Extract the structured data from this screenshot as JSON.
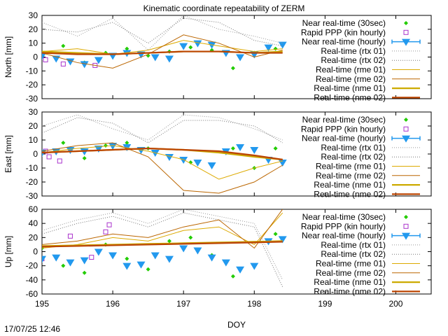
{
  "page": {
    "title": "Kinematic coordinate repeatability of ZERM",
    "timestamp": "17/07/25 12:46"
  },
  "legend_entries": [
    {
      "label": "Near real-time (30sec)",
      "color": "#22cc00",
      "style": "points"
    },
    {
      "label": "Rapid PPP (kin hourly)",
      "color": "#aa33cc",
      "style": "square"
    },
    {
      "label": "Near real-time (hourly)",
      "color": "#2299ee",
      "style": "triangle-errorbar"
    },
    {
      "label": "Real-time (rtx 01)",
      "color": "#999999",
      "style": "dotted"
    },
    {
      "label": "Real-time (rtx 02)",
      "color": "#777777",
      "style": "dotted"
    },
    {
      "label": "Real-time (rme 01)",
      "color": "#ddaa00",
      "style": "line"
    },
    {
      "label": "Real-time (rme 02)",
      "color": "#bb6600",
      "style": "line"
    },
    {
      "label": "Real-time (nme 01)",
      "color": "#ccaa00",
      "style": "thick-line"
    },
    {
      "label": "Real-time (nme 02)",
      "color": "#bb4400",
      "style": "thick-line"
    }
  ],
  "chart_data": [
    {
      "type": "scatter",
      "panel": "north",
      "title": "Kinematic coordinate repeatability of ZERM",
      "ylabel": "North [mm]",
      "xlabel": "",
      "xlim": [
        195,
        200.5
      ],
      "ylim": [
        -30,
        30
      ],
      "yticks": [
        "30",
        "20",
        "10",
        "0",
        "-10",
        "-20",
        "-30"
      ],
      "xticks": [],
      "grid": false,
      "legend_placement": "right",
      "series": [
        {
          "name": "Near real-time (30sec)",
          "x": [
            195.0,
            195.3,
            195.6,
            195.9,
            196.2,
            196.5,
            196.8,
            197.1,
            197.4,
            197.7,
            198.0,
            198.3
          ],
          "y": [
            2,
            8,
            -4,
            3,
            6,
            1,
            4,
            7,
            5,
            -8,
            3,
            6
          ]
        },
        {
          "name": "Rapid PPP (kin hourly)",
          "x": [
            195.05,
            195.3,
            195.75
          ],
          "y": [
            -2,
            -5,
            -6
          ]
        },
        {
          "name": "Near real-time (hourly)",
          "x": [
            195.0,
            195.2,
            195.4,
            195.6,
            195.8,
            196.0,
            196.2,
            196.4,
            196.6,
            196.8,
            197.0,
            197.2,
            197.4,
            197.6,
            197.8,
            198.0,
            198.2,
            198.4
          ],
          "y": [
            1,
            -1,
            -3,
            -5,
            -2,
            1,
            3,
            2,
            0,
            -1,
            8,
            10,
            9,
            3,
            0,
            2,
            7,
            9
          ]
        },
        {
          "name": "Real-time (rtx 01)",
          "x": [
            195.0,
            195.5,
            196.0,
            196.5,
            197.0,
            197.5,
            198.0,
            198.4
          ],
          "y": [
            25,
            15,
            28,
            5,
            30,
            20,
            15,
            10
          ]
        },
        {
          "name": "Real-time (rtx 02)",
          "x": [
            195.0,
            195.5,
            196.0,
            196.5,
            197.0,
            197.5,
            198.0,
            198.4
          ],
          "y": [
            20,
            18,
            25,
            10,
            28,
            25,
            12,
            8
          ]
        },
        {
          "name": "Real-time (rme 01)",
          "x": [
            195.0,
            195.5,
            196.0,
            196.5,
            197.0,
            197.5,
            198.0,
            198.4
          ],
          "y": [
            4,
            6,
            2,
            5,
            12,
            8,
            4,
            6
          ]
        },
        {
          "name": "Real-time (rme 02)",
          "x": [
            195.0,
            195.5,
            196.0,
            196.5,
            197.0,
            197.5,
            198.0,
            198.4
          ],
          "y": [
            3,
            -4,
            -8,
            2,
            16,
            10,
            0,
            5
          ]
        },
        {
          "name": "Real-time (nme 01)",
          "x": [
            195.0,
            195.5,
            196.0,
            196.5,
            197.0,
            197.5,
            198.0,
            198.4
          ],
          "y": [
            4,
            3,
            2,
            3,
            4,
            4,
            3,
            4
          ]
        },
        {
          "name": "Real-time (nme 02)",
          "x": [
            195.0,
            195.5,
            196.0,
            196.5,
            197.0,
            197.5,
            198.0,
            198.4
          ],
          "y": [
            3,
            2,
            2,
            3,
            4,
            4,
            3,
            3
          ]
        }
      ]
    },
    {
      "type": "scatter",
      "panel": "east",
      "title": "",
      "ylabel": "East [mm]",
      "xlabel": "",
      "xlim": [
        195,
        200.5
      ],
      "ylim": [
        -30,
        30
      ],
      "yticks": [
        "30",
        "20",
        "10",
        "0",
        "-10",
        "-20",
        "-30"
      ],
      "xticks": [],
      "grid": false,
      "legend_placement": "right",
      "series": [
        {
          "name": "Near real-time (30sec)",
          "x": [
            195.0,
            195.3,
            195.6,
            195.9,
            196.2,
            196.5,
            196.8,
            197.1,
            197.4,
            197.7,
            198.0,
            198.3
          ],
          "y": [
            2,
            8,
            -3,
            6,
            8,
            4,
            -2,
            -6,
            -8,
            4,
            -10,
            4
          ]
        },
        {
          "name": "Rapid PPP (kin hourly)",
          "x": [
            195.05,
            195.1,
            195.25
          ],
          "y": [
            2,
            -2,
            -5
          ]
        },
        {
          "name": "Near real-time (hourly)",
          "x": [
            195.0,
            195.2,
            195.4,
            195.6,
            195.8,
            196.0,
            196.2,
            196.4,
            196.6,
            196.8,
            197.0,
            197.2,
            197.4,
            197.6,
            197.8,
            198.0,
            198.2,
            198.4
          ],
          "y": [
            1,
            2,
            3,
            2,
            4,
            6,
            5,
            3,
            1,
            -2,
            -4,
            -6,
            -8,
            2,
            5,
            3,
            -4,
            -6
          ]
        },
        {
          "name": "Real-time (rtx 01)",
          "x": [
            195.0,
            195.5,
            196.0,
            196.5,
            197.0,
            197.5,
            198.0,
            198.4
          ],
          "y": [
            20,
            28,
            18,
            10,
            28,
            26,
            18,
            10
          ]
        },
        {
          "name": "Real-time (rtx 02)",
          "x": [
            195.0,
            195.5,
            196.0,
            196.5,
            197.0,
            197.5,
            198.0,
            198.4
          ],
          "y": [
            15,
            26,
            22,
            8,
            24,
            24,
            20,
            8
          ]
        },
        {
          "name": "Real-time (rme 01)",
          "x": [
            195.0,
            195.5,
            196.0,
            196.5,
            197.0,
            197.5,
            198.0,
            198.4
          ],
          "y": [
            1,
            4,
            6,
            2,
            -4,
            -18,
            -10,
            -5
          ]
        },
        {
          "name": "Real-time (rme 02)",
          "x": [
            195.0,
            195.5,
            196.0,
            196.5,
            197.0,
            197.5,
            198.0,
            198.4
          ],
          "y": [
            2,
            6,
            8,
            -2,
            -26,
            -28,
            -20,
            -8
          ]
        },
        {
          "name": "Real-time (nme 01)",
          "x": [
            195.0,
            195.5,
            196.0,
            196.5,
            197.0,
            197.5,
            198.0,
            198.4
          ],
          "y": [
            1,
            2,
            3,
            4,
            3,
            1,
            -2,
            -4
          ]
        },
        {
          "name": "Real-time (nme 02)",
          "x": [
            195.0,
            195.5,
            196.0,
            196.5,
            197.0,
            197.5,
            198.0,
            198.4
          ],
          "y": [
            1,
            2,
            3,
            4,
            3,
            2,
            -1,
            -4
          ]
        }
      ]
    },
    {
      "type": "scatter",
      "panel": "up",
      "title": "",
      "ylabel": "Up [mm]",
      "xlabel": "DOY",
      "xlim": [
        195,
        200.5
      ],
      "ylim": [
        -60,
        60
      ],
      "yticks": [
        "60",
        "40",
        "20",
        "0",
        "-20",
        "-40",
        "-60"
      ],
      "xticks": [
        "195",
        "196",
        "197",
        "198",
        "199",
        "200"
      ],
      "grid": false,
      "legend_placement": "right",
      "series": [
        {
          "name": "Near real-time (30sec)",
          "x": [
            195.0,
            195.3,
            195.6,
            195.9,
            196.2,
            196.5,
            196.8,
            197.1,
            197.4,
            197.7,
            198.0,
            198.3
          ],
          "y": [
            5,
            -20,
            -30,
            10,
            -10,
            -25,
            15,
            20,
            -5,
            -35,
            -20,
            25
          ]
        },
        {
          "name": "Rapid PPP (kin hourly)",
          "x": [
            195.0,
            195.4,
            195.7,
            195.9,
            195.95
          ],
          "y": [
            -10,
            22,
            -8,
            28,
            38
          ]
        },
        {
          "name": "Near real-time (hourly)",
          "x": [
            195.0,
            195.2,
            195.4,
            195.6,
            195.8,
            196.0,
            196.2,
            196.4,
            196.6,
            196.8,
            197.0,
            197.2,
            197.4,
            197.6,
            197.8,
            198.0,
            198.2,
            198.4
          ],
          "y": [
            -10,
            -8,
            -15,
            -12,
            0,
            -5,
            -20,
            -18,
            -5,
            -10,
            5,
            2,
            -8,
            -15,
            -25,
            -20,
            15,
            18
          ]
        },
        {
          "name": "Real-time (rtx 01)",
          "x": [
            195.0,
            195.5,
            196.0,
            196.5,
            197.0,
            197.5,
            198.0,
            198.4
          ],
          "y": [
            30,
            45,
            55,
            40,
            60,
            50,
            40,
            -40
          ]
        },
        {
          "name": "Real-time (rtx 02)",
          "x": [
            195.0,
            195.5,
            196.0,
            196.5,
            197.0,
            197.5,
            198.0,
            198.4
          ],
          "y": [
            25,
            40,
            50,
            35,
            55,
            45,
            35,
            -50
          ]
        },
        {
          "name": "Real-time (rme 01)",
          "x": [
            195.0,
            195.5,
            196.0,
            196.5,
            197.0,
            197.5,
            198.0,
            198.4
          ],
          "y": [
            5,
            10,
            20,
            15,
            30,
            35,
            10,
            55
          ]
        },
        {
          "name": "Real-time (rme 02)",
          "x": [
            195.0,
            195.5,
            196.0,
            196.5,
            197.0,
            197.5,
            198.0,
            198.4
          ],
          "y": [
            10,
            15,
            25,
            20,
            35,
            45,
            5,
            60
          ]
        },
        {
          "name": "Real-time (nme 01)",
          "x": [
            195.0,
            195.5,
            196.0,
            196.5,
            197.0,
            197.5,
            198.0,
            198.4
          ],
          "y": [
            8,
            9,
            10,
            11,
            12,
            13,
            14,
            15
          ]
        },
        {
          "name": "Real-time (nme 02)",
          "x": [
            195.0,
            195.5,
            196.0,
            196.5,
            197.0,
            197.5,
            198.0,
            198.4
          ],
          "y": [
            7,
            8,
            9,
            10,
            11,
            12,
            13,
            14
          ]
        }
      ]
    }
  ]
}
